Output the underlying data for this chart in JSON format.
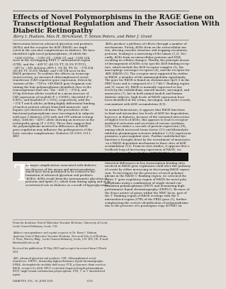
{
  "title_line1": "Effects of Novel Polymorphisms in the RAGE Gene on",
  "title_line2": "Transcriptional Regulation and Their Association With",
  "title_line3": "Diabetic Retinopathy",
  "authors": "Barry I. Hudson, Max H. Strickland, T. Simon Peters, and Peter J. Grant",
  "page_bg": "#e2ddd6",
  "title_fontsize": 6.8,
  "authors_fontsize": 3.9,
  "body_fontsize": 2.85,
  "footer_fontsize": 2.4,
  "separator_color": "#666666",
  "text_color": "#1a1a1a",
  "footer_color": "#2a2a2a",
  "dropcap_letter": "T",
  "dropcap_rest": "he major complications associated with diabetes\nare diseases of the macro and microvasculature,\nwhich have been postulated to be related to the\nformation of advanced glycation end products\n(AGEs). AGEs result from the nonenzymatic glycation of\nproteins and lipids (1), which form during aging and at an\naccelerated rate in diabetes as a result of hyperglycemia.",
  "col1_abstract": "Interactions between advanced glycation end products\n(AGEs) and the receptor for AGE (RAGE) are impli-\ncated in the vascular complications in diabetes. We have\nidentified eight novel polymorphisms, of which the\n~1420 (GGT)n, ~1393 GT, ~1990 GT, and ~1392 G/A\nwere in the overlapping PRE1 5’ untranslated region\n(UTR), and the ~429 TC (46.5% TT, 33.5% TCTCC),\n~407 to ~345 deletion (89% I, 1% ID, 9% D), ~374 D/A\n(66.4% TT, 33.6% TA/AA), and +20 T/A were in the\nRAGE promoter. To evaluate the effects on transcrip-\ntional activity, we measured chloramphenicol acetyl\ntransferase (CAT) reporter gene expression, driven by\nvariants of the ~728 to +49 RAGE gene fragment con-\ntaining the four polymorphisms identified close to the\ntranscriptional start site. The ~429 C, ~374 A, and\n63-bp deletion alleles resulted in a mean increase of\nCAT expression of twofold (P < 0.0001), threefold (P <\n0.001), and fourfold (P < 0.05), respectively, with the\n~374 T and A alleles yielding highly differential binding\nof nuclear protein extract from both monocyte- and\nhepato cyte-derived cell lines. The prevalence of the\nfunctional polymorphisms were investigated in subjects\nwith type 2 diabetes (196 with and 189 without retinop-\nathy), with the ~429 C allele showing an increase in the\nretinopathy group (P < 0.05). These data suggest that\nthe polymorphisms involved in differences in RAGE\ngene regulation may influence the pathogenesis of dia-\nbetic vascular complications. Diabetes 50:1505–1511,\n2001",
  "col2_abstract": "AGEs produce a plethora of effects through a number of\nmechanisms. Firstly, AGEs form on the extracellular ma-\ntrix, altering vascular structure and trapping circulatory\nproteins, leading to a narrowing of the lumen (1,2). Sec-\nondly, AGEs form on intracellular proteins and DNA,\nresulting in cellular changes. Thirdly, the principle means\nof derangement of AGEs is by specific AGE-binding recep-\ntors, which include the AGE-receptor complex (3), the\nmacrophage scavenger receptors (4), and the receptor for\nAGE (RAGE) (5). The receptor most supported by studies\nin RAGE, a member of the immunoglobulin superfamily.\nThe gene for RAGE is found on chromosome 6p21.3 in the\nMHC locus and is composed of a 1.7-kb 5’ flanking region\nand 11 exons (6). RAGE is normally expressed at low\nlevels by the endothelium, smooth muscle, mesangial, and\nmonocytes (7), but in both animal models and human\ndiabetic subjects, high levels of RAGE expression have\nbeen identified in the retina, mesangial, and aortic vessels,\nconcomitant with AGE accumulation (8,9).\n\nIn normal homeostasis, it appears that RAGE functions\nto bind and internalize low levels of AGE for degradation,\nhowever, in diabetes, because of the sustained interaction\nof higher levels of AGEs, this appears to lead to receptor-\nmediated activation and secretion of various cytokines\n(10). These induce a cascade of protein expression (10),\namong which increased tissue factor (11) and fibrinolytic\ninhibitor plasminogen-activator inhibitor 1 (12) expression\npromotes a procoagulant state. Further endothelial dys-\nfunction is brought about by the recruitment of monocytes\nvia a RAGE-dependent mechanism to those sites of AGE\naccumulation (13). From in vitro studies, it appears that a\nfeedback loop of increasing expression of RAGE, via\nnuclear factor-κB, results from AGE-RAGE binding to\nenhance these effects (10).\n\nInherited differences in key transcription binding sites\ninvolved in RAGE gene regulation could alter this pathway\nof events by either increasing or decreasing RAGE expres-\nsion. To investigate for the presence of novel polymor-\nphisms in the RAGE 5’ flanking region, we screened the\nentire 5’ gene regulatory region of RAGE for novel poly-\nmorphisms using a combination of single-strand con-\nformation polymorphisms (SSCP) and denaturing high-\nperformance liquid chromatography (DHPLC). Because of\nthe dense nature of genes within the MHC locus, part of\nthe 5’ flanking region of RAGE overlaps with the 3’\nuntranslated region (UTR) of the PBX2 gene (5), further\ncomplicating the correct identification of polymorphisms\ndue to the presence of a paralogous copy of PBX1 on",
  "footer_text": "From the Academic Unit of Molecular Vascular Medicine, University of Leeds,\nLeeds General Infirmary, Leeds, U.K.\n\nAddress correspondence and reprint requests to Dr. Barry I. Hudson,\nAcademic Unit of Molecular Vascular Medicine, Research School of Medicine,\nG. Floor, Worsley Bldg., Leeds General Infirmary, Leeds, LS1 3EX, UK. E-mail:\nb.hudson@leeds.ac.uk\n\nReceived for publication 30 May 2000 and accepted in revised form 2 March\n2001.\n\nAGE, advanced glycation end products; CAT, chloramphenicol acetyl\ntransferase; DHPLC, denaturing high-performance liquid chromatography;\nEMSA, electrophoretic mobility shift assay; PCR, polymerase chain reaction;\nRAGE, receptor for AGE; RFLP, restriction fragment-length polymorphism;\nSSCP, single-strand conformation polymorphism; UTR, 5’ or 3’ untranslated\nregion.\n\nDIABETES, VOL. 50, JUNE 2001                                          1505"
}
